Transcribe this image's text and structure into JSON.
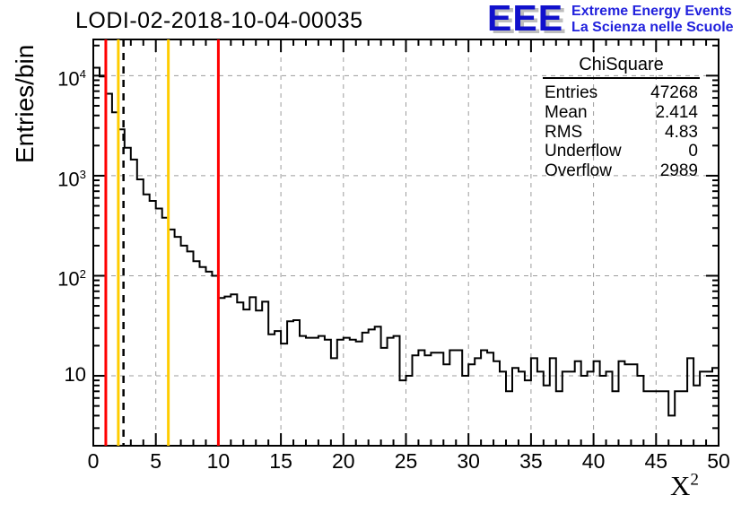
{
  "logo": {
    "acronym": "EEE",
    "line1": "Extreme Energy Events",
    "line2": "La Scienza nelle Scuole",
    "blue": "#2222dd"
  },
  "chart_data": {
    "type": "histogram",
    "title": "LODI-02-2018-10-04-00035",
    "xlabel": {
      "base": "X",
      "sup": "2"
    },
    "ylabel": "Entries/bin",
    "x_start": 0,
    "bin_width": 0.5,
    "values": [
      12000,
      9800,
      6600,
      4300,
      2900,
      1900,
      1450,
      920,
      650,
      560,
      470,
      380,
      290,
      245,
      200,
      175,
      140,
      122,
      110,
      100,
      60,
      62,
      65,
      54,
      46,
      61,
      45,
      55,
      26,
      28,
      21,
      35,
      36,
      25,
      24,
      24,
      25,
      23,
      15,
      23,
      24,
      23,
      22,
      27,
      29,
      31,
      19,
      24,
      25,
      9,
      10,
      16,
      18,
      16,
      17,
      17,
      13,
      18,
      18,
      10,
      13,
      15,
      18,
      17,
      14,
      11,
      7,
      12,
      11,
      9,
      15,
      11,
      8,
      15,
      7,
      11,
      11,
      14,
      10,
      11,
      14,
      10,
      11,
      7,
      14,
      13,
      13,
      10,
      7,
      7,
      7,
      7,
      4,
      7,
      7,
      15,
      8,
      11,
      11,
      12
    ],
    "xlim": [
      0,
      50
    ],
    "ylim": [
      2,
      23000
    ],
    "y_scale": "log",
    "x_major_ticks": [
      0,
      5,
      10,
      15,
      20,
      25,
      30,
      35,
      40,
      45,
      50
    ],
    "x_minor_step": 1,
    "y_ticks": [
      {
        "value": 10,
        "base": "10",
        "sup": ""
      },
      {
        "value": 100,
        "base": "10",
        "sup": "2"
      },
      {
        "value": 1000,
        "base": "10",
        "sup": "3"
      },
      {
        "value": 10000,
        "base": "10",
        "sup": "4"
      }
    ],
    "grid": {
      "show": true,
      "style": "dashed",
      "color": "#9c9c9c"
    },
    "hist_color": "#000000",
    "cut_lines": [
      {
        "x": 1,
        "color": "#ff0000",
        "style": "solid",
        "name": "red-cut-low"
      },
      {
        "x": 2,
        "color": "#ffcc00",
        "style": "solid",
        "name": "yellow-cut-low"
      },
      {
        "x": 2.414,
        "color": "#000000",
        "style": "dashed",
        "name": "mean-dashed-line"
      },
      {
        "x": 6,
        "color": "#ffcc00",
        "style": "solid",
        "name": "yellow-cut-high"
      },
      {
        "x": 10,
        "color": "#ff0000",
        "style": "solid",
        "name": "red-cut-high"
      }
    ],
    "stats_box": {
      "title": "ChiSquare",
      "rows": [
        {
          "label": "Entries",
          "value": "47268"
        },
        {
          "label": "Mean",
          "value": "2.414"
        },
        {
          "label": "RMS",
          "value": "4.83"
        },
        {
          "label": "Underflow",
          "value": "0"
        },
        {
          "label": "Overflow",
          "value": "2989"
        }
      ]
    }
  }
}
